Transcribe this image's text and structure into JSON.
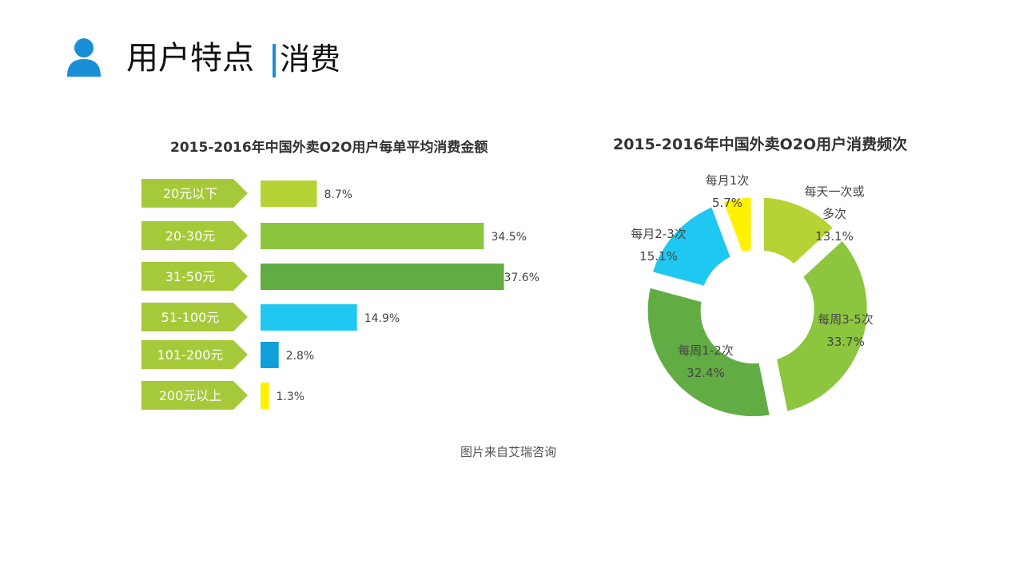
{
  "header": {
    "icon": "user-icon",
    "title": "用户特点",
    "subtitle": "消费",
    "accent_color": "#1a8fd6"
  },
  "caption": "图片来自艾瑞咨询",
  "chart_data": [
    {
      "type": "bar",
      "orientation": "horizontal",
      "title": "2015-2016年中国外卖O2O用户每单平均消费金额",
      "categories": [
        "20元以下",
        "20-30元",
        "31-50元",
        "51-100元",
        "101-200元",
        "200元以上"
      ],
      "values": [
        8.7,
        34.5,
        37.6,
        14.9,
        2.8,
        1.3
      ],
      "value_labels": [
        "8.7%",
        "34.5%",
        "37.6%",
        "14.9%",
        "2.8%",
        "1.3%"
      ],
      "colors": [
        "#b5d334",
        "#8cc63f",
        "#62ac44",
        "#1ec8f0",
        "#0fa0da",
        "#fff200"
      ],
      "label_color": "#a6c93a",
      "grid": false
    },
    {
      "type": "pie",
      "variant": "donut",
      "title": "2015-2016年中国外卖O2O用户消费频次",
      "categories": [
        "每天一次或多次",
        "每周3-5次",
        "每周1-2次",
        "每月2-3次",
        "每月1次"
      ],
      "values": [
        13.1,
        33.7,
        32.4,
        15.1,
        5.7
      ],
      "value_labels": [
        "13.1%",
        "33.7%",
        "32.4%",
        "15.1%",
        "5.7%"
      ],
      "colors": [
        "#b5d334",
        "#8cc63f",
        "#62ac44",
        "#1ec8f0",
        "#fff200"
      ]
    }
  ]
}
